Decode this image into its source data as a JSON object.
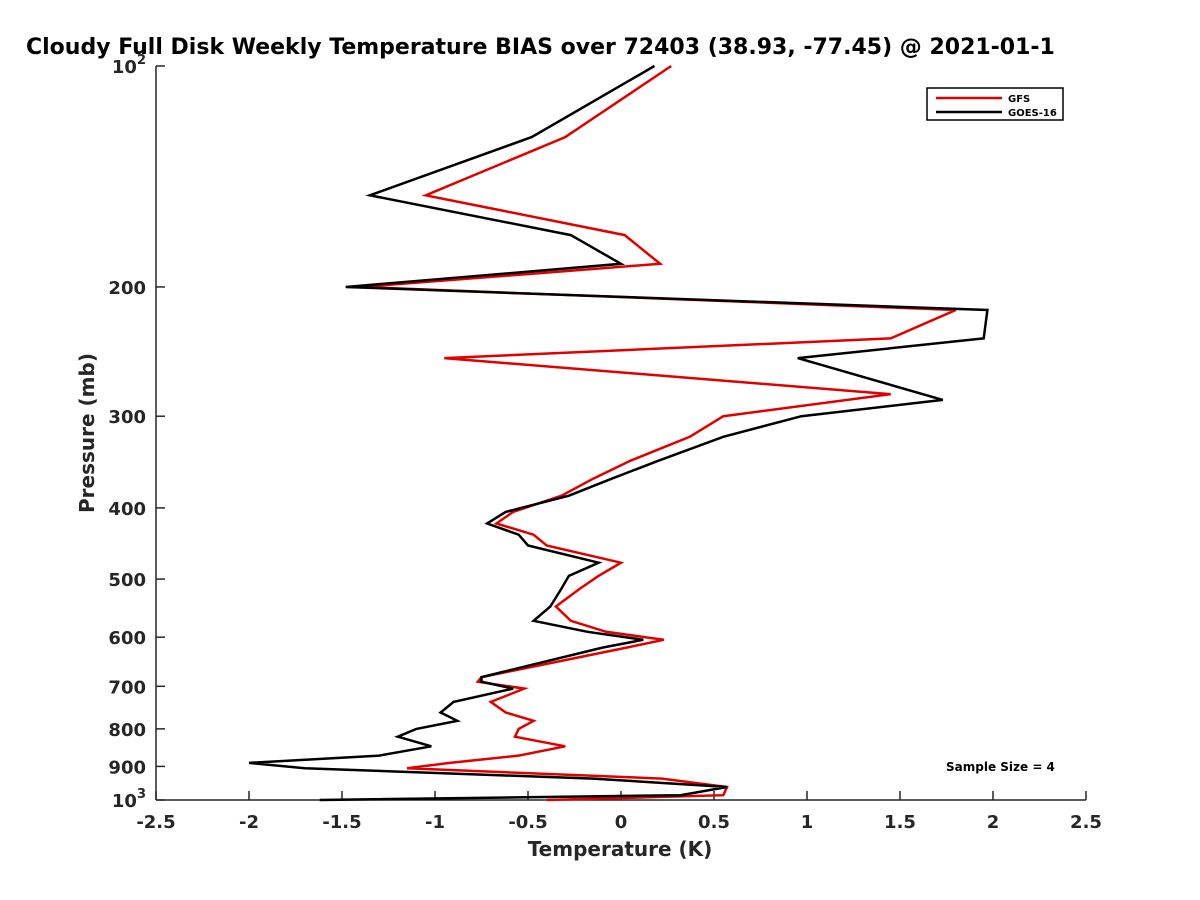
{
  "chart_data": {
    "type": "line",
    "title": "Cloudy Full Disk Weekly Temperature BIAS over 72403 (38.93, -77.45) @ 2021-01-1",
    "xlabel": "Temperature (K)",
    "ylabel": "Pressure (mb)",
    "xlim": [
      -2.5,
      2.5
    ],
    "ylim": [
      100,
      1000
    ],
    "y_scale": "log",
    "y_reversed": true,
    "grid": false,
    "legend_position": "top-right",
    "x_ticks": [
      "-2.5",
      "-2",
      "-1.5",
      "-1",
      "-0.5",
      "0",
      "0.5",
      "1",
      "1.5",
      "2",
      "2.5"
    ],
    "x_tick_values": [
      -2.5,
      -2,
      -1.5,
      -1,
      -0.5,
      0,
      0.5,
      1,
      1.5,
      2,
      2.5
    ],
    "y_ticks": [
      {
        "value": 100,
        "base": "10",
        "exp": "2"
      },
      {
        "value": 200,
        "label": "200"
      },
      {
        "value": 300,
        "label": "300"
      },
      {
        "value": 400,
        "label": "400"
      },
      {
        "value": 500,
        "label": "500"
      },
      {
        "value": 600,
        "label": "600"
      },
      {
        "value": 700,
        "label": "700"
      },
      {
        "value": 800,
        "label": "800"
      },
      {
        "value": 900,
        "label": "900"
      },
      {
        "value": 1000,
        "base": "10",
        "exp": "3"
      }
    ],
    "annotation": "Sample Size = 4",
    "series": [
      {
        "name": "GFS",
        "color": "#e00000",
        "points": [
          [
            0.27,
            100
          ],
          [
            -0.3,
            125
          ],
          [
            -1.05,
            150
          ],
          [
            0.02,
            170
          ],
          [
            0.21,
            186
          ],
          [
            -1.4,
            200
          ],
          [
            1.8,
            215
          ],
          [
            1.45,
            235
          ],
          [
            -0.95,
            250
          ],
          [
            1.45,
            280
          ],
          [
            0.55,
            300
          ],
          [
            0.37,
            320
          ],
          [
            0.05,
            345
          ],
          [
            -0.15,
            365
          ],
          [
            -0.32,
            385
          ],
          [
            -0.58,
            405
          ],
          [
            -0.67,
            420
          ],
          [
            -0.47,
            435
          ],
          [
            -0.4,
            450
          ],
          [
            0.0,
            475
          ],
          [
            -0.12,
            495
          ],
          [
            -0.22,
            515
          ],
          [
            -0.35,
            545
          ],
          [
            -0.27,
            570
          ],
          [
            -0.08,
            590
          ],
          [
            0.23,
            605
          ],
          [
            0.03,
            620
          ],
          [
            -0.75,
            680
          ],
          [
            -0.77,
            690
          ],
          [
            -0.52,
            705
          ],
          [
            -0.7,
            735
          ],
          [
            -0.62,
            760
          ],
          [
            -0.47,
            780
          ],
          [
            -0.55,
            800
          ],
          [
            -0.57,
            820
          ],
          [
            -0.3,
            845
          ],
          [
            -0.55,
            870
          ],
          [
            -0.92,
            890
          ],
          [
            -1.15,
            905
          ],
          [
            0.22,
            935
          ],
          [
            0.57,
            960
          ],
          [
            0.55,
            985
          ],
          [
            -0.4,
            1000
          ]
        ]
      },
      {
        "name": "GOES-16",
        "color": "#000000",
        "points": [
          [
            0.18,
            100
          ],
          [
            -0.48,
            125
          ],
          [
            -1.35,
            150
          ],
          [
            -0.27,
            170
          ],
          [
            0.0,
            186
          ],
          [
            -1.48,
            200
          ],
          [
            1.97,
            215
          ],
          [
            1.95,
            235
          ],
          [
            0.95,
            250
          ],
          [
            1.73,
            285
          ],
          [
            0.97,
            300
          ],
          [
            0.55,
            320
          ],
          [
            0.2,
            345
          ],
          [
            -0.05,
            365
          ],
          [
            -0.28,
            385
          ],
          [
            -0.62,
            405
          ],
          [
            -0.72,
            420
          ],
          [
            -0.55,
            435
          ],
          [
            -0.5,
            450
          ],
          [
            -0.12,
            475
          ],
          [
            -0.28,
            495
          ],
          [
            -0.32,
            515
          ],
          [
            -0.38,
            545
          ],
          [
            -0.47,
            570
          ],
          [
            -0.18,
            590
          ],
          [
            0.12,
            605
          ],
          [
            -0.1,
            620
          ],
          [
            -0.75,
            680
          ],
          [
            -0.75,
            690
          ],
          [
            -0.58,
            705
          ],
          [
            -0.9,
            735
          ],
          [
            -0.97,
            760
          ],
          [
            -0.88,
            780
          ],
          [
            -1.1,
            800
          ],
          [
            -1.2,
            820
          ],
          [
            -1.02,
            845
          ],
          [
            -1.3,
            870
          ],
          [
            -2.0,
            890
          ],
          [
            -1.7,
            905
          ],
          [
            -0.15,
            935
          ],
          [
            0.57,
            960
          ],
          [
            0.32,
            985
          ],
          [
            -1.62,
            1000
          ]
        ]
      }
    ]
  }
}
